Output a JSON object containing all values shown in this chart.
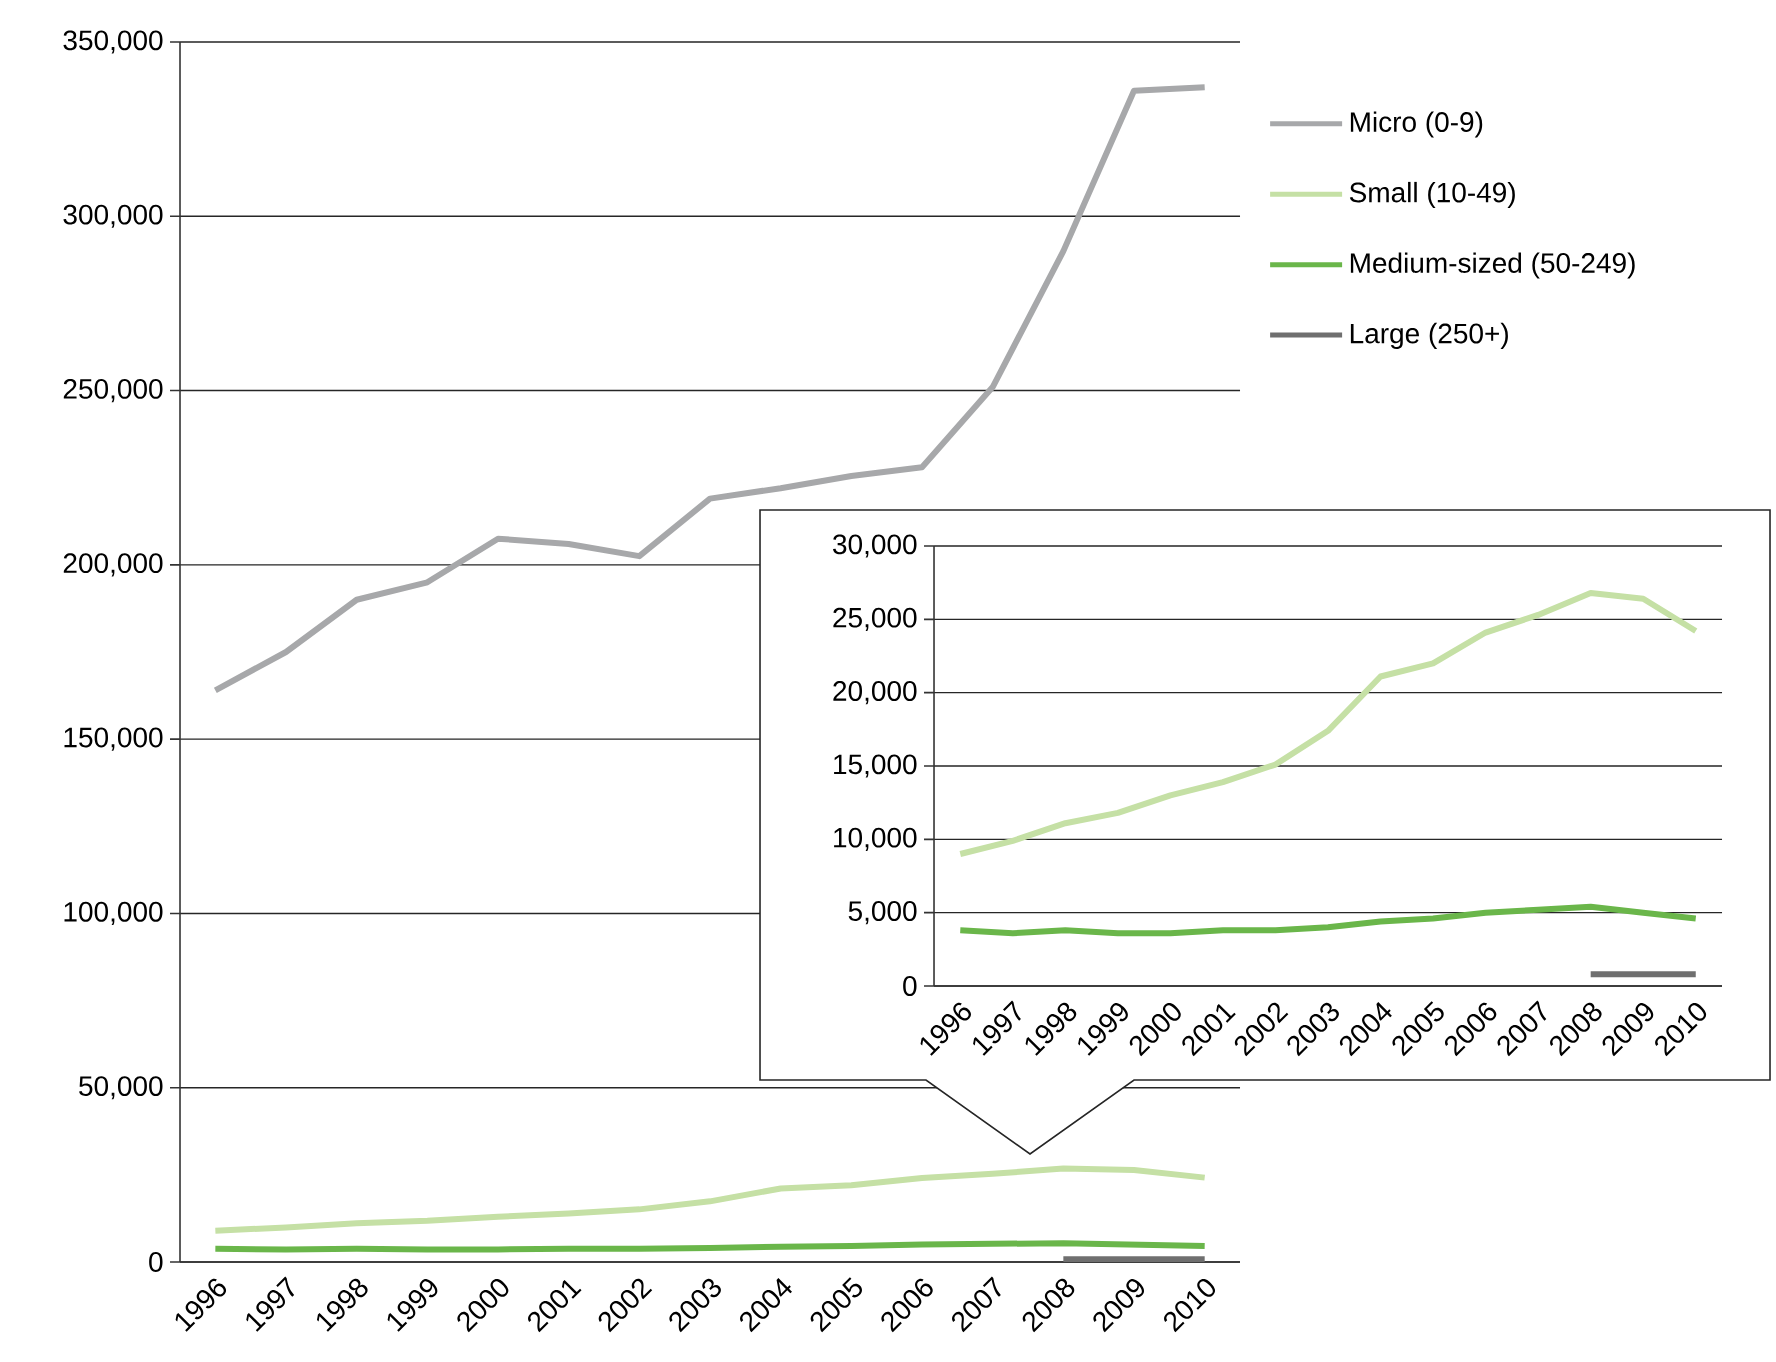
{
  "chart_data": [
    {
      "type": "line",
      "categories": [
        "1996",
        "1997",
        "1998",
        "1999",
        "2000",
        "2001",
        "2002",
        "2003",
        "2004",
        "2005",
        "2006",
        "2007",
        "2008",
        "2009",
        "2010"
      ],
      "series": [
        {
          "name": "Micro (0-9)",
          "color": "#a7a8aa",
          "values": [
            164000,
            175000,
            190000,
            195000,
            207500,
            206000,
            202500,
            219000,
            222000,
            225500,
            228000,
            251000,
            290000,
            336000,
            337000
          ]
        },
        {
          "name": "Small (10-49)",
          "color": "#c5e0a5",
          "values": [
            9000,
            9900,
            11100,
            11800,
            13000,
            13900,
            15100,
            17400,
            21100,
            22000,
            24100,
            25300,
            26800,
            26400,
            24200
          ]
        },
        {
          "name": "Medium-sized (50-249)",
          "color": "#6ab64a",
          "values": [
            3800,
            3600,
            3800,
            3600,
            3600,
            3800,
            3800,
            4000,
            4400,
            4600,
            5000,
            5200,
            5400,
            5000,
            4600
          ]
        },
        {
          "name": "Large (250+)",
          "color": "#6f6f6f",
          "values": [
            null,
            null,
            null,
            null,
            null,
            null,
            null,
            null,
            null,
            null,
            null,
            null,
            800,
            800,
            800
          ]
        }
      ],
      "ylim": [
        0,
        350000
      ],
      "yticks": [
        {
          "value": 0,
          "label": "0"
        },
        {
          "value": 50000,
          "label": "50,000"
        },
        {
          "value": 100000,
          "label": "100,000"
        },
        {
          "value": 150000,
          "label": "150,000"
        },
        {
          "value": 200000,
          "label": "200,000"
        },
        {
          "value": 250000,
          "label": "250,000"
        },
        {
          "value": 300000,
          "label": "300,000"
        },
        {
          "value": 350000,
          "label": "350,000"
        }
      ],
      "grid": "y",
      "legend": "right"
    },
    {
      "type": "line",
      "categories": [
        "1996",
        "1997",
        "1998",
        "1999",
        "2000",
        "2001",
        "2002",
        "2003",
        "2004",
        "2005",
        "2006",
        "2007",
        "2008",
        "2009",
        "2010"
      ],
      "series": [
        {
          "color": "#c5e0a5",
          "values": [
            9000,
            9900,
            11100,
            11800,
            13000,
            13900,
            15100,
            17400,
            21100,
            22000,
            24100,
            25300,
            26800,
            26400,
            24200
          ]
        },
        {
          "color": "#6ab64a",
          "values": [
            3800,
            3600,
            3800,
            3600,
            3600,
            3800,
            3800,
            4000,
            4400,
            4600,
            5000,
            5200,
            5400,
            5000,
            4600
          ]
        },
        {
          "color": "#6f6f6f",
          "values": [
            null,
            null,
            null,
            null,
            null,
            null,
            null,
            null,
            null,
            null,
            null,
            null,
            800,
            800,
            800
          ]
        }
      ],
      "ylim": [
        0,
        30000
      ],
      "yticks": [
        {
          "value": 0,
          "label": "0"
        },
        {
          "value": 5000,
          "label": "5,000"
        },
        {
          "value": 10000,
          "label": "10,000"
        },
        {
          "value": 15000,
          "label": "15,000"
        },
        {
          "value": 20000,
          "label": "20,000"
        },
        {
          "value": 25000,
          "label": "25,000"
        },
        {
          "value": 30000,
          "label": "30,000"
        }
      ],
      "grid": "y"
    }
  ]
}
